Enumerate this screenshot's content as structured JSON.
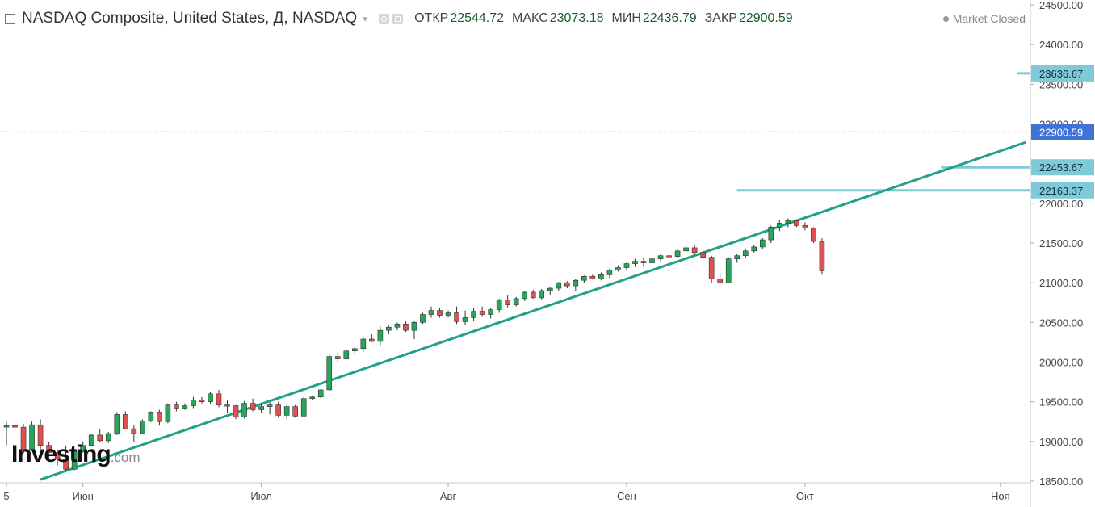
{
  "header": {
    "title": "NASDAQ Composite, United States, Д, NASDAQ",
    "open_label": "ОТКР",
    "open": "22544.72",
    "high_label": "МАКС",
    "high": "23073.18",
    "low_label": "МИН",
    "low": "22436.79",
    "close_label": "ЗАКР",
    "close": "22900.59",
    "status": "Market Closed"
  },
  "watermark": {
    "main": "Investing",
    "suffix": ".com"
  },
  "colors": {
    "up": "#26a65b",
    "down": "#e0504f",
    "trend": "#23a188",
    "level": "#7fcad9",
    "price_tag": "#3f73d6",
    "level_tag": "#7fcad9"
  },
  "chart_data": {
    "type": "candlestick",
    "timeframe": "Д",
    "ylim": [
      18500,
      24500
    ],
    "y_ticks": [
      18500,
      19000,
      19500,
      20000,
      20500,
      21000,
      21500,
      22000,
      22500,
      23000,
      23500,
      24000,
      24500
    ],
    "y_tick_labels": [
      "18500.00",
      "19000.00",
      "19500.00",
      "20000.00",
      "20500.00",
      "21000.00",
      "21500.00",
      "22000.00",
      "22500.00",
      "23000.00",
      "23500.00",
      "24000.00",
      "24500.00"
    ],
    "x_labels": [
      {
        "label": "5",
        "bar": 0
      },
      {
        "label": "Июн",
        "bar": 9
      },
      {
        "label": "Июл",
        "bar": 30
      },
      {
        "label": "Авг",
        "bar": 52
      },
      {
        "label": "Сен",
        "bar": 73
      },
      {
        "label": "Окт",
        "bar": 94
      },
      {
        "label": "Ноя",
        "bar": 117
      }
    ],
    "candles": [
      [
        19180,
        19250,
        18950,
        19200
      ],
      [
        19200,
        19260,
        19000,
        19180
      ],
      [
        19180,
        19220,
        18850,
        18900
      ],
      [
        18900,
        19250,
        18880,
        19210
      ],
      [
        19210,
        19280,
        18900,
        18950
      ],
      [
        18950,
        18990,
        18780,
        18860
      ],
      [
        18860,
        18900,
        18700,
        18780
      ],
      [
        18780,
        18950,
        18620,
        18650
      ],
      [
        18650,
        18900,
        18640,
        18870
      ],
      [
        18870,
        19000,
        18860,
        18950
      ],
      [
        18950,
        19100,
        18940,
        19080
      ],
      [
        19080,
        19150,
        18990,
        19010
      ],
      [
        19010,
        19120,
        18980,
        19100
      ],
      [
        19100,
        19370,
        19080,
        19340
      ],
      [
        19340,
        19380,
        19150,
        19160
      ],
      [
        19160,
        19200,
        19000,
        19100
      ],
      [
        19100,
        19280,
        19090,
        19260
      ],
      [
        19260,
        19380,
        19240,
        19370
      ],
      [
        19370,
        19400,
        19200,
        19250
      ],
      [
        19250,
        19480,
        19230,
        19460
      ],
      [
        19460,
        19500,
        19380,
        19420
      ],
      [
        19420,
        19480,
        19400,
        19450
      ],
      [
        19450,
        19560,
        19420,
        19520
      ],
      [
        19520,
        19560,
        19480,
        19500
      ],
      [
        19500,
        19620,
        19470,
        19600
      ],
      [
        19600,
        19650,
        19430,
        19460
      ],
      [
        19460,
        19520,
        19360,
        19450
      ],
      [
        19450,
        19460,
        19280,
        19310
      ],
      [
        19310,
        19510,
        19290,
        19480
      ],
      [
        19480,
        19540,
        19380,
        19400
      ],
      [
        19400,
        19480,
        19360,
        19440
      ],
      [
        19440,
        19490,
        19340,
        19460
      ],
      [
        19460,
        19500,
        19300,
        19330
      ],
      [
        19330,
        19460,
        19280,
        19440
      ],
      [
        19440,
        19460,
        19300,
        19320
      ],
      [
        19320,
        19560,
        19320,
        19540
      ],
      [
        19540,
        19580,
        19520,
        19560
      ],
      [
        19560,
        19660,
        19540,
        19650
      ],
      [
        19650,
        20100,
        19640,
        20070
      ],
      [
        20070,
        20120,
        19990,
        20040
      ],
      [
        20040,
        20150,
        20030,
        20140
      ],
      [
        20140,
        20200,
        20100,
        20170
      ],
      [
        20170,
        20320,
        20130,
        20290
      ],
      [
        20290,
        20350,
        20250,
        20260
      ],
      [
        20260,
        20450,
        20200,
        20400
      ],
      [
        20400,
        20460,
        20350,
        20440
      ],
      [
        20440,
        20500,
        20400,
        20480
      ],
      [
        20480,
        20520,
        20380,
        20400
      ],
      [
        20400,
        20520,
        20290,
        20500
      ],
      [
        20500,
        20620,
        20480,
        20600
      ],
      [
        20600,
        20700,
        20560,
        20650
      ],
      [
        20650,
        20680,
        20560,
        20590
      ],
      [
        20590,
        20650,
        20560,
        20620
      ],
      [
        20620,
        20700,
        20480,
        20510
      ],
      [
        20510,
        20650,
        20470,
        20560
      ],
      [
        20560,
        20680,
        20520,
        20640
      ],
      [
        20640,
        20700,
        20570,
        20600
      ],
      [
        20600,
        20680,
        20550,
        20660
      ],
      [
        20660,
        20800,
        20620,
        20780
      ],
      [
        20780,
        20840,
        20690,
        20720
      ],
      [
        20720,
        20820,
        20700,
        20800
      ],
      [
        20800,
        20900,
        20770,
        20880
      ],
      [
        20880,
        20910,
        20800,
        20810
      ],
      [
        20810,
        20920,
        20790,
        20900
      ],
      [
        20900,
        20950,
        20850,
        20930
      ],
      [
        20930,
        21010,
        20900,
        21000
      ],
      [
        21000,
        21020,
        20930,
        20960
      ],
      [
        20960,
        21050,
        20900,
        21030
      ],
      [
        21030,
        21090,
        21000,
        21080
      ],
      [
        21080,
        21100,
        21040,
        21050
      ],
      [
        21050,
        21130,
        21030,
        21100
      ],
      [
        21100,
        21180,
        21060,
        21160
      ],
      [
        21160,
        21220,
        21140,
        21190
      ],
      [
        21190,
        21260,
        21150,
        21240
      ],
      [
        21240,
        21300,
        21200,
        21270
      ],
      [
        21270,
        21320,
        21200,
        21250
      ],
      [
        21250,
        21310,
        21180,
        21300
      ],
      [
        21300,
        21360,
        21270,
        21340
      ],
      [
        21340,
        21380,
        21300,
        21330
      ],
      [
        21330,
        21420,
        21310,
        21400
      ],
      [
        21400,
        21460,
        21380,
        21440
      ],
      [
        21440,
        21470,
        21350,
        21380
      ],
      [
        21380,
        21410,
        21300,
        21320
      ],
      [
        21320,
        21340,
        21000,
        21050
      ],
      [
        21050,
        21120,
        20980,
        21000
      ],
      [
        21000,
        21320,
        20990,
        21300
      ],
      [
        21300,
        21360,
        21250,
        21340
      ],
      [
        21340,
        21420,
        21310,
        21400
      ],
      [
        21400,
        21470,
        21380,
        21450
      ],
      [
        21450,
        21560,
        21420,
        21540
      ],
      [
        21540,
        21720,
        21500,
        21700
      ],
      [
        21700,
        21790,
        21650,
        21750
      ],
      [
        21750,
        21810,
        21700,
        21780
      ],
      [
        21780,
        21800,
        21700,
        21720
      ],
      [
        21720,
        21760,
        21660,
        21690
      ],
      [
        21690,
        21700,
        21500,
        21520
      ],
      [
        21520,
        21560,
        21100,
        21150
      ]
    ],
    "levels": [
      {
        "label": "23636.67",
        "value": 23636.67,
        "from_bar": 119
      },
      {
        "label": "22453.67",
        "value": 22453.67,
        "from_bar": 110
      },
      {
        "label": "22163.37",
        "value": 22163.37,
        "from_bar": 86
      }
    ],
    "last_price": {
      "label": "22900.59",
      "value": 22900.59
    },
    "trendline": {
      "from": {
        "bar": 4,
        "value": 18520
      },
      "to": {
        "bar": 120,
        "value": 22770
      }
    }
  }
}
